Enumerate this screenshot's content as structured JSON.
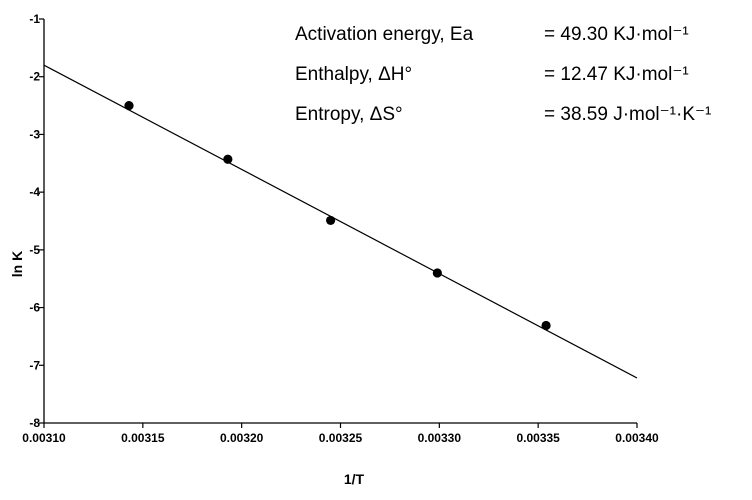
{
  "chart_data": {
    "type": "scatter",
    "xlabel": "1/T",
    "ylabel": "ln K",
    "xlim": [
      0.0031,
      0.0034
    ],
    "ylim": [
      -8,
      -1
    ],
    "x_ticks": [
      "0.00310",
      "0.00315",
      "0.00320",
      "0.00325",
      "0.00330",
      "0.00335",
      "0.00340"
    ],
    "y_ticks": [
      "-1",
      "-2",
      "-3",
      "-4",
      "-5",
      "-6",
      "-7",
      "-8"
    ],
    "x_tick_values": [
      0.0031,
      0.00315,
      0.0032,
      0.00325,
      0.0033,
      0.00335,
      0.0034
    ],
    "y_tick_values": [
      -1,
      -2,
      -3,
      -4,
      -5,
      -6,
      -7,
      -8
    ],
    "grid": false,
    "points": [
      {
        "x": 0.003143,
        "y": -2.5
      },
      {
        "x": 0.003193,
        "y": -3.43
      },
      {
        "x": 0.003245,
        "y": -4.49
      },
      {
        "x": 0.003299,
        "y": -5.4
      },
      {
        "x": 0.003354,
        "y": -6.31
      }
    ],
    "fit_line": [
      {
        "x": 0.0031,
        "y": -1.8
      },
      {
        "x": 0.0034,
        "y": -7.22
      }
    ],
    "annotations": [
      {
        "label": "Activation energy, Ea",
        "value": "= 49.30 KJ·mol⁻¹"
      },
      {
        "label": "Enthalpy, ΔH°",
        "value": "= 12.47 KJ·mol⁻¹"
      },
      {
        "label": "Entropy, ΔS°",
        "value": "= 38.59 J·mol⁻¹·K⁻¹"
      }
    ]
  }
}
